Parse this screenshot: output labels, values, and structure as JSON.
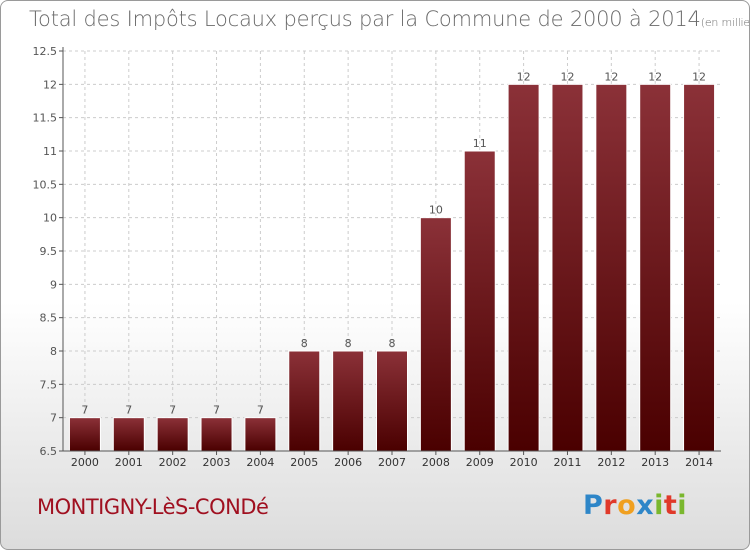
{
  "header": {
    "title": "Total des Impôts Locaux perçus par la Commune de 2000 à 2014",
    "unit": "(en milliers d'€)"
  },
  "footer": {
    "commune": "MONTIGNY-LèS-CONDé",
    "logo_letters": [
      "P",
      "r",
      "o",
      "x",
      "i",
      "t",
      "i"
    ]
  },
  "colors": {
    "bar_top": "#8b3138",
    "bar_bottom": "#4a0000",
    "axis": "#555555",
    "grid": "#cccccc",
    "title": "#6a6a6a",
    "commune": "#a01020"
  },
  "chart_data": {
    "type": "bar",
    "categories": [
      "2000",
      "2001",
      "2002",
      "2003",
      "2004",
      "2005",
      "2006",
      "2007",
      "2008",
      "2009",
      "2010",
      "2011",
      "2012",
      "2013",
      "2014"
    ],
    "values": [
      7,
      7,
      7,
      7,
      7,
      8,
      8,
      8,
      10,
      11,
      12,
      12,
      12,
      12,
      12
    ],
    "data_labels": [
      "7",
      "7",
      "7",
      "7",
      "7",
      "8",
      "8",
      "8",
      "10",
      "11",
      "12",
      "12",
      "12",
      "12",
      "12"
    ],
    "ylim": [
      6.5,
      12.5
    ],
    "yticks": [
      6.5,
      7,
      7.5,
      8,
      8.5,
      9,
      9.5,
      10,
      10.5,
      11,
      11.5,
      12,
      12.5
    ],
    "ytick_labels": [
      "6.5",
      "7",
      "7.5",
      "8",
      "8.5",
      "9",
      "9.5",
      "10",
      "10.5",
      "11",
      "11.5",
      "12",
      "12.5"
    ],
    "xlabel": "",
    "ylabel": "",
    "grid": true
  }
}
